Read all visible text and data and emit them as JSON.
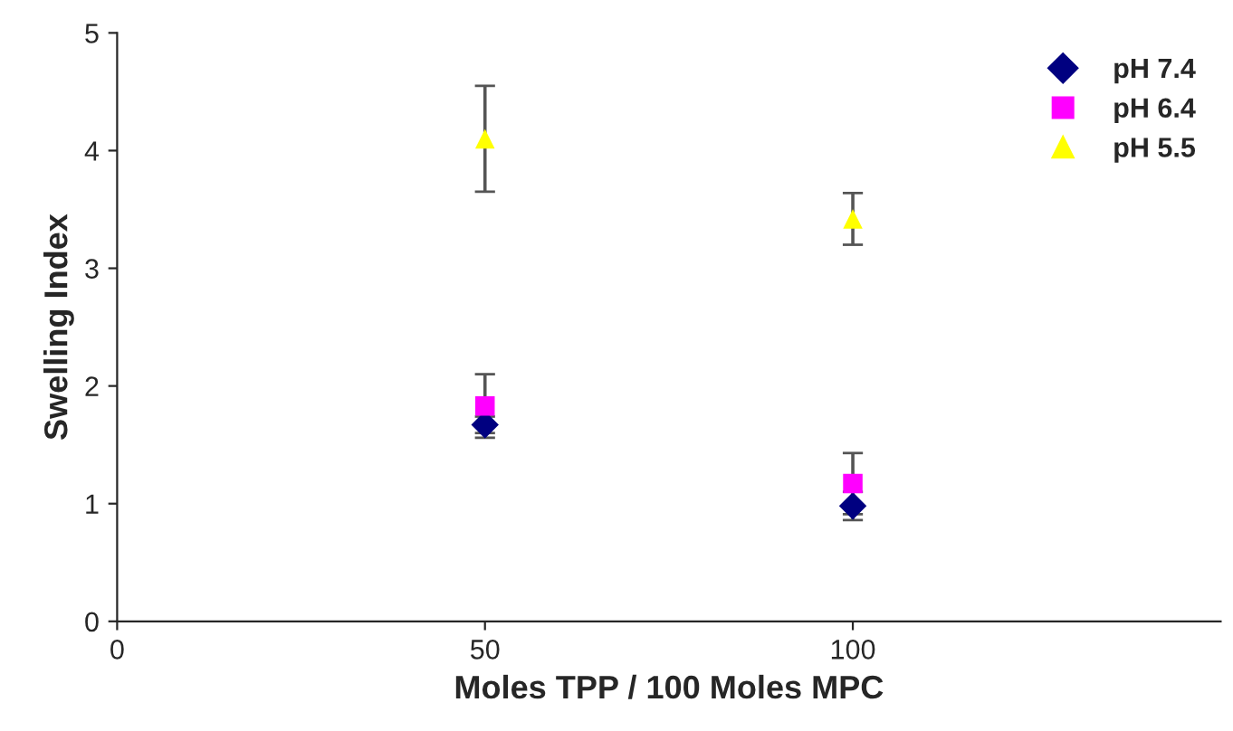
{
  "chart_data": {
    "type": "scatter",
    "xlabel": "Moles TPP / 100 Moles MPC",
    "ylabel": "Swelling Index",
    "x": [
      50,
      100
    ],
    "xlim": [
      0,
      150
    ],
    "xticks": [
      0,
      50,
      100
    ],
    "ylim": [
      0,
      5
    ],
    "yticks": [
      0,
      1,
      2,
      3,
      4,
      5
    ],
    "grid": false,
    "legend": "top right",
    "series": [
      {
        "name": "pH 7.4",
        "color": "#000080",
        "marker": "diamond",
        "values": [
          1.67,
          0.98
        ],
        "errors": [
          0.07,
          0.12
        ]
      },
      {
        "name": "pH 6.4",
        "color": "#ff00ff",
        "marker": "square",
        "values": [
          1.83,
          1.17
        ],
        "errors": [
          0.27,
          0.26
        ]
      },
      {
        "name": "pH 5.5",
        "color": "#ffff00",
        "marker": "triangle",
        "values": [
          4.1,
          3.42
        ],
        "errors": [
          0.45,
          0.22
        ]
      }
    ]
  }
}
